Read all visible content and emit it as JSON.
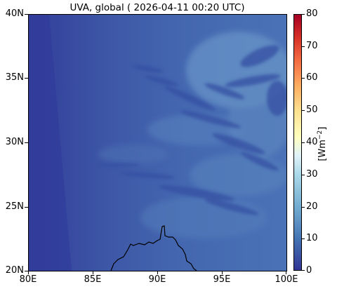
{
  "title": "UVA, global ( 2026-04-11 00:20 UTC)",
  "map": {
    "lat_range": [
      20,
      40
    ],
    "lon_range": [
      80,
      100
    ],
    "lat_ticks": [
      "40N",
      "35N",
      "30N",
      "25N",
      "20N"
    ],
    "lon_ticks": [
      "80E",
      "85E",
      "90E",
      "95E",
      "100E"
    ]
  },
  "colorbar": {
    "ticks": [
      "80",
      "70",
      "60",
      "50",
      "40",
      "30",
      "20",
      "10",
      "0"
    ],
    "unit_base": "[Wm",
    "unit_sup": "−2",
    "unit_end": "]",
    "colors": [
      "#313695",
      "#4575b4",
      "#74add1",
      "#abd9e9",
      "#e0f3f8",
      "#ffffbf",
      "#fee090",
      "#fdae61",
      "#f46d43",
      "#d73027",
      "#a50026"
    ],
    "range": [
      0,
      80
    ]
  }
}
